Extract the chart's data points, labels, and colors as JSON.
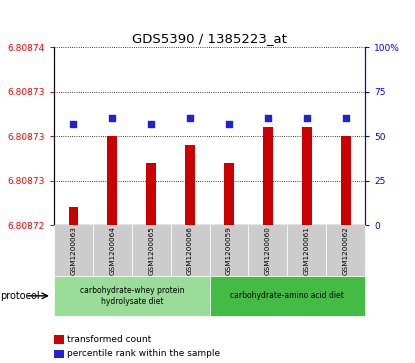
{
  "title": "GDS5390 / 1385223_at",
  "samples": [
    "GSM1200063",
    "GSM1200064",
    "GSM1200065",
    "GSM1200066",
    "GSM1200059",
    "GSM1200060",
    "GSM1200061",
    "GSM1200062"
  ],
  "transformed_count": [
    6.808722,
    6.80873,
    6.808727,
    6.808729,
    6.808727,
    6.808731,
    6.808731,
    6.80873
  ],
  "percentile_rank": [
    57,
    60,
    57,
    60,
    57,
    60,
    60,
    60
  ],
  "y_min": 6.80872,
  "y_max": 6.80874,
  "left_tick_vals": [
    6.80872,
    6.808725,
    6.80873,
    6.808735,
    6.80874
  ],
  "left_tick_labels": [
    "6.80872",
    "6.80873",
    "6.80873",
    "6.80873",
    "6.80874"
  ],
  "right_y_ticks": [
    0,
    25,
    50,
    75,
    100
  ],
  "bar_color": "#cc0000",
  "dot_color": "#2222cc",
  "protocol_groups": [
    {
      "label": "carbohydrate-whey protein\nhydrolysate diet",
      "start": 0,
      "end": 4,
      "color": "#99dd99"
    },
    {
      "label": "carbohydrate-amino acid diet",
      "start": 4,
      "end": 8,
      "color": "#44bb44"
    }
  ],
  "legend_bar_label": "transformed count",
  "legend_dot_label": "percentile rank within the sample",
  "protocol_label": "protocol",
  "gray_label_color": "#bbbbbb"
}
